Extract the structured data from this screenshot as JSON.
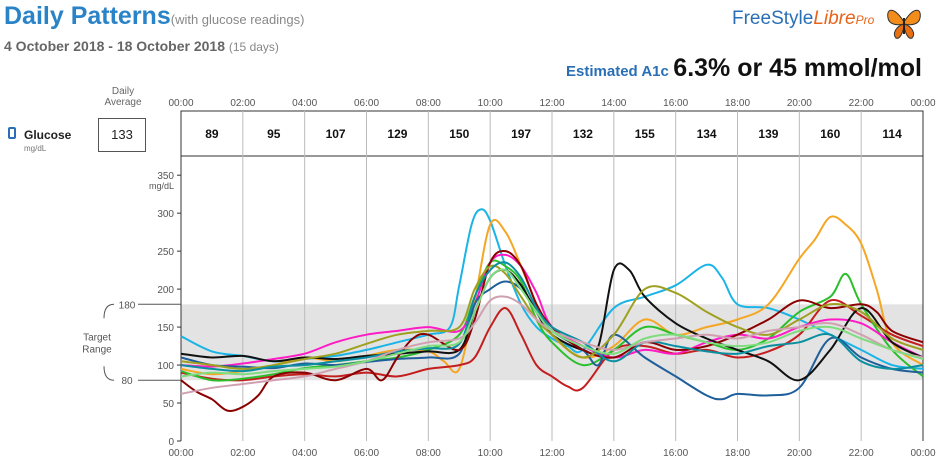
{
  "header": {
    "title": "Daily Patterns",
    "subtitle": "(with glucose readings)",
    "date_range": "4 October 2018 - 18 October 2018",
    "days": "(15 days)",
    "logo_freestyle": "FreeStyle",
    "logo_libre": "Libre",
    "logo_pro": "Pro",
    "a1c_label": "Estimated A1c",
    "a1c_value": "6.3% or 45 mmol/mol"
  },
  "daily_average": {
    "header_line1": "Daily",
    "header_line2": "Average",
    "metric": "Glucose",
    "unit": "mg/dL",
    "value": "133"
  },
  "chart_data": {
    "type": "line",
    "x_unit": "hours",
    "x_ticks": [
      "00:00",
      "02:00",
      "04:00",
      "06:00",
      "08:00",
      "10:00",
      "12:00",
      "14:00",
      "16:00",
      "18:00",
      "20:00",
      "22:00",
      "00:00"
    ],
    "y_ticks": [
      0,
      50,
      100,
      150,
      200,
      250,
      300,
      350
    ],
    "y_unit_label": "mg/dL",
    "ylim": [
      0,
      370
    ],
    "xlim": [
      0,
      24
    ],
    "target_range": {
      "low": 80,
      "high": 180,
      "label_line1": "Target",
      "label_line2": "Range",
      "low_label": "80",
      "high_label": "180"
    },
    "bin_averages": [
      "89",
      "95",
      "107",
      "129",
      "150",
      "197",
      "132",
      "155",
      "134",
      "139",
      "160",
      "114"
    ],
    "grid": "vertical-every-2h",
    "series": [
      {
        "color": "#1ab4e6",
        "x": [
          0,
          1,
          2,
          3,
          4,
          5,
          6,
          7,
          8,
          8.7,
          9,
          9.4,
          9.7,
          10,
          10.5,
          11,
          11.5,
          12,
          12.5,
          13,
          14,
          15,
          16,
          17,
          17.5,
          18,
          19,
          20,
          21,
          22,
          23,
          24
        ],
        "y": [
          138,
          118,
          112,
          105,
          108,
          112,
          120,
          130,
          140,
          150,
          205,
          285,
          305,
          290,
          230,
          180,
          150,
          135,
          125,
          120,
          175,
          190,
          205,
          232,
          215,
          180,
          175,
          160,
          140,
          120,
          100,
          95
        ]
      },
      {
        "color": "#f5a623",
        "x": [
          0,
          1,
          2,
          3,
          4,
          5,
          6,
          7,
          8,
          8.5,
          9,
          9.5,
          10,
          10.5,
          11,
          11.5,
          12,
          13,
          14,
          15,
          16,
          17,
          18,
          19,
          20,
          20.5,
          21,
          21.5,
          22,
          22.5,
          23,
          24
        ],
        "y": [
          95,
          88,
          92,
          100,
          110,
          105,
          112,
          120,
          118,
          105,
          95,
          185,
          285,
          275,
          230,
          180,
          140,
          110,
          125,
          160,
          140,
          150,
          160,
          180,
          240,
          265,
          295,
          285,
          260,
          200,
          130,
          100
        ]
      },
      {
        "color": "#c41e1e",
        "x": [
          0,
          1,
          2,
          3,
          4,
          5,
          6,
          7,
          8,
          9,
          9.5,
          10,
          10.5,
          11,
          11.5,
          12,
          12.5,
          13,
          14,
          15,
          16,
          17,
          18,
          19,
          20,
          21,
          22,
          23,
          24
        ],
        "y": [
          90,
          82,
          80,
          85,
          88,
          85,
          90,
          85,
          95,
          100,
          110,
          150,
          175,
          140,
          100,
          85,
          72,
          70,
          120,
          125,
          115,
          120,
          110,
          118,
          140,
          185,
          165,
          140,
          125
        ]
      },
      {
        "color": "#2bbf2b",
        "x": [
          0,
          1,
          2,
          3,
          4,
          5,
          6,
          7,
          8,
          9,
          9.5,
          10,
          10.5,
          11,
          11.5,
          12,
          13,
          14,
          15,
          16,
          17,
          18,
          19,
          20,
          21,
          21.5,
          22,
          23,
          24
        ],
        "y": [
          92,
          80,
          82,
          88,
          96,
          100,
          105,
          110,
          120,
          140,
          190,
          235,
          230,
          210,
          160,
          130,
          100,
          120,
          150,
          140,
          130,
          120,
          135,
          170,
          190,
          220,
          180,
          120,
          85
        ]
      },
      {
        "color": "#ff1cc6",
        "x": [
          0,
          1,
          2,
          3,
          4,
          5,
          6,
          7,
          8,
          9,
          9.5,
          10,
          10.5,
          11,
          11.5,
          12,
          13,
          14,
          15,
          16,
          17,
          18,
          19,
          20,
          21,
          22,
          23,
          24
        ],
        "y": [
          100,
          98,
          102,
          108,
          115,
          130,
          140,
          145,
          150,
          145,
          180,
          235,
          245,
          230,
          195,
          150,
          125,
          110,
          120,
          115,
          130,
          140,
          135,
          150,
          160,
          155,
          130,
          110
        ]
      },
      {
        "color": "#1f5f9a",
        "x": [
          0,
          1,
          2,
          3,
          4,
          5,
          6,
          7,
          8,
          9,
          9.5,
          10,
          10.5,
          11,
          11.5,
          12,
          13,
          13.5,
          14,
          15,
          16,
          17,
          17.5,
          18,
          19,
          20,
          21,
          22,
          23,
          24
        ],
        "y": [
          110,
          100,
          98,
          96,
          102,
          100,
          104,
          108,
          110,
          115,
          180,
          200,
          210,
          200,
          170,
          145,
          120,
          100,
          140,
          110,
          85,
          60,
          55,
          62,
          60,
          70,
          135,
          110,
          95,
          90
        ]
      },
      {
        "color": "#111111",
        "x": [
          0,
          1,
          2,
          3,
          4,
          5,
          6,
          7,
          8,
          9,
          9.5,
          10,
          10.5,
          11,
          11.5,
          12,
          13,
          13.5,
          14,
          14.5,
          15,
          16,
          17,
          18,
          19,
          20,
          21,
          22,
          23,
          24
        ],
        "y": [
          115,
          110,
          112,
          105,
          110,
          108,
          112,
          115,
          118,
          120,
          170,
          215,
          225,
          205,
          170,
          140,
          120,
          125,
          225,
          225,
          190,
          155,
          135,
          120,
          105,
          80,
          120,
          175,
          130,
          110
        ]
      },
      {
        "color": "#8b0000",
        "x": [
          0,
          0.5,
          1,
          1.5,
          2,
          2.5,
          3,
          4,
          5,
          6,
          6.5,
          7,
          7.5,
          8,
          9,
          9.5,
          10,
          10.5,
          11,
          11.5,
          12,
          13,
          14,
          15,
          16,
          17,
          18,
          19,
          20,
          21,
          22,
          22.5,
          23,
          24
        ],
        "y": [
          80,
          65,
          55,
          40,
          45,
          60,
          85,
          90,
          80,
          95,
          80,
          110,
          135,
          140,
          120,
          160,
          235,
          250,
          230,
          180,
          150,
          120,
          110,
          130,
          120,
          125,
          140,
          160,
          185,
          175,
          180,
          170,
          145,
          130
        ]
      },
      {
        "color": "#a0a020",
        "x": [
          0,
          1,
          2,
          3,
          4,
          5,
          6,
          7,
          8,
          9,
          9.5,
          10,
          10.5,
          11,
          11.5,
          12,
          13,
          14,
          15,
          16,
          17,
          18,
          19,
          20,
          21,
          22,
          23,
          24
        ],
        "y": [
          105,
          100,
          95,
          100,
          108,
          115,
          128,
          140,
          145,
          150,
          200,
          230,
          220,
          190,
          160,
          140,
          110,
          140,
          200,
          195,
          170,
          150,
          140,
          160,
          180,
          170,
          135,
          120
        ]
      },
      {
        "color": "#0a8fa0",
        "x": [
          0,
          1,
          2,
          3,
          4,
          5,
          6,
          7,
          8,
          9,
          9.5,
          10,
          10.5,
          11,
          11.5,
          12,
          13,
          14,
          15,
          16,
          17,
          18,
          19,
          20,
          21,
          22,
          23,
          24
        ],
        "y": [
          100,
          95,
          92,
          98,
          100,
          105,
          110,
          118,
          122,
          128,
          190,
          225,
          235,
          215,
          175,
          150,
          130,
          105,
          130,
          125,
          118,
          115,
          125,
          130,
          140,
          105,
          95,
          100
        ]
      },
      {
        "color": "#d0a0b0",
        "x": [
          0,
          1,
          2,
          3,
          4,
          5,
          6,
          7,
          8,
          9,
          9.5,
          10,
          10.5,
          11,
          11.5,
          12,
          13,
          14,
          15,
          16,
          17,
          18,
          19,
          20,
          21,
          22,
          23,
          24
        ],
        "y": [
          62,
          70,
          75,
          80,
          85,
          95,
          105,
          120,
          130,
          135,
          155,
          185,
          190,
          180,
          160,
          145,
          130,
          120,
          130,
          135,
          140,
          135,
          145,
          150,
          155,
          140,
          120,
          110
        ]
      },
      {
        "color": "#7fdc7f",
        "x": [
          0,
          1,
          2,
          3,
          4,
          5,
          6,
          7,
          8,
          9,
          9.5,
          10,
          10.5,
          11,
          11.5,
          12,
          13,
          14,
          15,
          16,
          17,
          18,
          19,
          20,
          21,
          22,
          23,
          24
        ],
        "y": [
          85,
          90,
          88,
          92,
          95,
          98,
          105,
          115,
          125,
          130,
          170,
          215,
          225,
          200,
          170,
          145,
          125,
          115,
          135,
          140,
          130,
          125,
          130,
          145,
          150,
          135,
          120,
          108
        ]
      }
    ]
  }
}
